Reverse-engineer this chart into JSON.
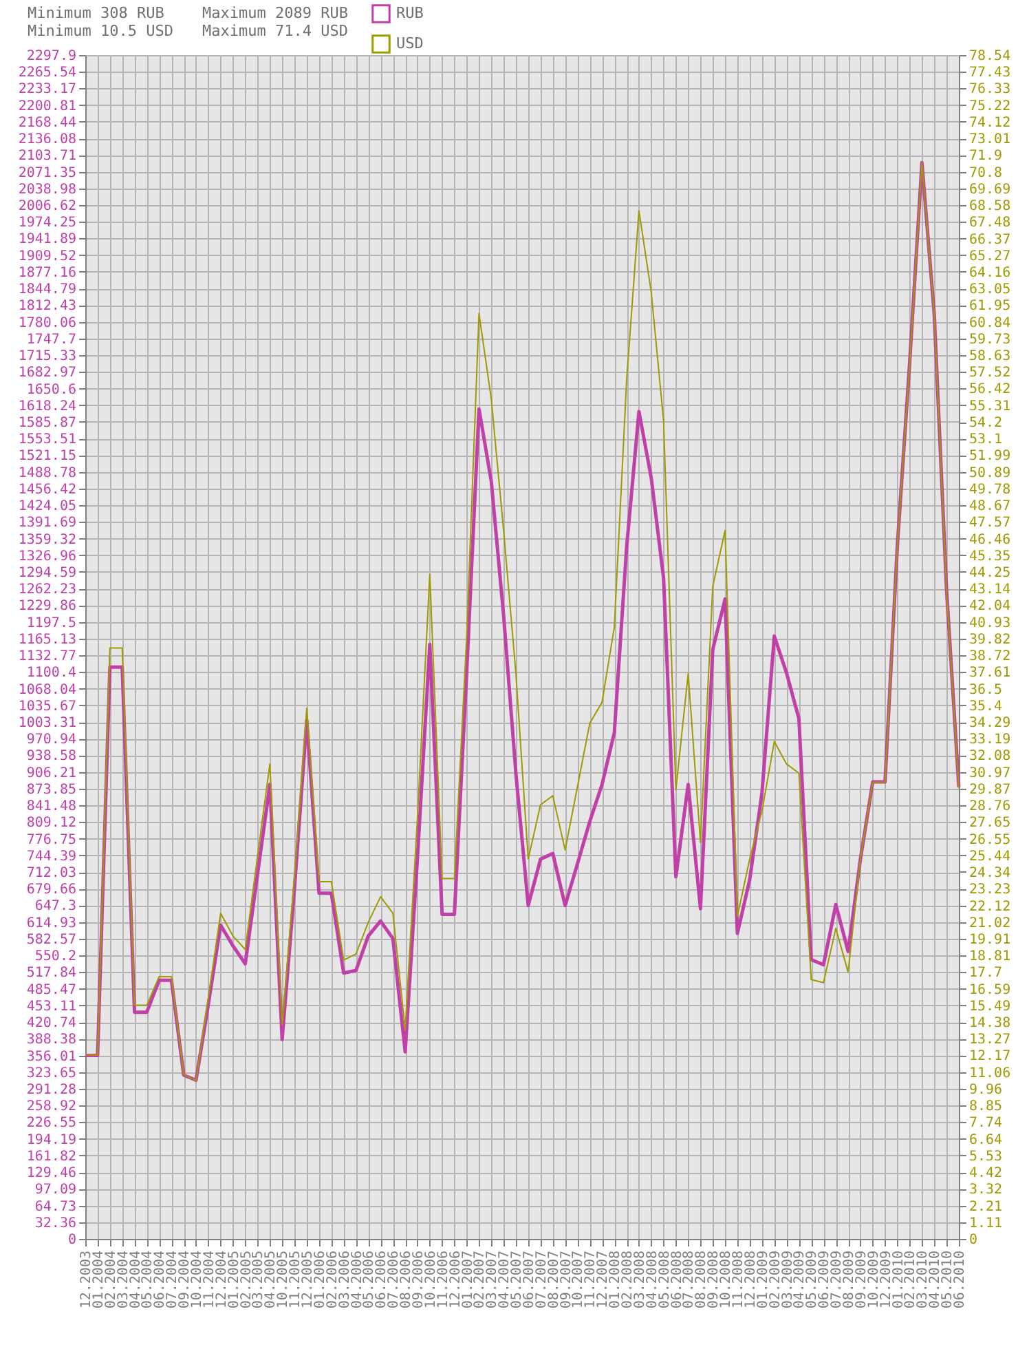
{
  "chart_data": {
    "type": "line",
    "annotations": [
      "Minimum 308 RUB",
      "Minimum 10.5 USD",
      "Maximum 2089 RUB",
      "Maximum 71.4 USD"
    ],
    "categories": [
      "12.2003",
      "01.2004",
      "02.2004",
      "03.2004",
      "04.2004",
      "05.2004",
      "06.2004",
      "07.2004",
      "09.2004",
      "10.2004",
      "11.2004",
      "12.2004",
      "01.2005",
      "02.2005",
      "03.2005",
      "04.2005",
      "10.2005",
      "11.2005",
      "12.2005",
      "01.2006",
      "02.2006",
      "03.2006",
      "04.2006",
      "05.2006",
      "06.2006",
      "07.2006",
      "08.2006",
      "09.2006",
      "10.2006",
      "11.2006",
      "12.2006",
      "01.2007",
      "02.2007",
      "03.2007",
      "04.2007",
      "05.2007",
      "06.2007",
      "07.2007",
      "08.2007",
      "09.2007",
      "10.2007",
      "11.2007",
      "12.2007",
      "01.2008",
      "02.2008",
      "03.2008",
      "04.2008",
      "05.2008",
      "06.2008",
      "07.2008",
      "08.2008",
      "09.2008",
      "10.2008",
      "11.2008",
      "12.2008",
      "01.2009",
      "02.2009",
      "03.2009",
      "04.2009",
      "05.2009",
      "06.2009",
      "07.2009",
      "08.2009",
      "09.2009",
      "10.2009",
      "12.2009",
      "01.2010",
      "02.2010",
      "03.2010",
      "04.2010",
      "05.2010",
      "06.2010"
    ],
    "series": [
      {
        "name": "RUB",
        "color": "#c040a8",
        "values": [
          356,
          356,
          1110,
          1110,
          440,
          440,
          502,
          502,
          318,
          308,
          455,
          609,
          569,
          534,
          708,
          882,
          387,
          680,
          1007,
          671,
          671,
          516,
          521,
          588,
          617,
          583,
          363,
          740,
          1154,
          630,
          630,
          1100,
          1611,
          1470,
          1210,
          903,
          647,
          737,
          748,
          647,
          728,
          810,
          882,
          983,
          1343,
          1606,
          1477,
          1283,
          703,
          882,
          641,
          1144,
          1242,
          593,
          697,
          866,
          1170,
          1098,
          1010,
          542,
          532,
          649,
          558,
          737,
          887,
          887,
          1345,
          1700,
          2089,
          1795,
          1260,
          877
        ]
      },
      {
        "name": "USD",
        "color": "#a09a00",
        "axis": "y2",
        "values": [
          12.2,
          12.2,
          39.2,
          39.2,
          15.5,
          15.5,
          17.4,
          17.4,
          10.9,
          10.5,
          16,
          21.6,
          20.1,
          19.2,
          25.4,
          31.5,
          14.2,
          24,
          35.2,
          23.7,
          23.7,
          18.5,
          18.9,
          21,
          22.7,
          21.6,
          13.9,
          28,
          44.1,
          23.9,
          23.9,
          40,
          61.4,
          55.7,
          47,
          37.5,
          25.2,
          28.8,
          29.4,
          25.8,
          30,
          34.2,
          35.6,
          40.6,
          57,
          68.2,
          62.8,
          54.3,
          29.8,
          37.5,
          26.3,
          43.3,
          47,
          21.4,
          25.2,
          28.4,
          33,
          31.5,
          30.9,
          17.2,
          17,
          20.6,
          17.7,
          25.2,
          30.3,
          30.3,
          46,
          58,
          71.4,
          61.4,
          43,
          29.9
        ]
      }
    ],
    "ylim": [
      0,
      2297.9
    ],
    "yticks": [
      0,
      32.36,
      64.73,
      97.09,
      129.46,
      161.82,
      194.19,
      226.55,
      258.92,
      291.28,
      323.65,
      356.01,
      388.38,
      420.74,
      453.11,
      485.47,
      517.84,
      550.2,
      582.57,
      614.93,
      647.3,
      679.66,
      712.03,
      744.39,
      776.75,
      809.12,
      841.48,
      873.85,
      906.21,
      938.58,
      970.94,
      1003.31,
      1035.67,
      1068.04,
      1100.4,
      1132.77,
      1165.13,
      1197.5,
      1229.86,
      1262.23,
      1294.59,
      1326.96,
      1359.32,
      1391.69,
      1424.05,
      1456.42,
      1488.78,
      1521.15,
      1553.51,
      1585.87,
      1618.24,
      1650.6,
      1682.97,
      1715.33,
      1747.7,
      1780.06,
      1812.43,
      1844.79,
      1877.16,
      1909.52,
      1941.89,
      1974.25,
      2006.62,
      2038.98,
      2071.35,
      2103.71,
      2136.08,
      2168.44,
      2200.81,
      2233.17,
      2265.54,
      2297.9
    ],
    "y2lim": [
      0,
      78.54
    ],
    "y2ticks": [
      0,
      1.11,
      2.21,
      3.32,
      4.42,
      5.53,
      6.64,
      7.74,
      8.85,
      9.96,
      11.06,
      12.17,
      13.27,
      14.38,
      15.49,
      16.59,
      17.7,
      18.81,
      19.91,
      21.02,
      22.12,
      23.23,
      24.34,
      25.44,
      26.55,
      27.65,
      28.76,
      29.87,
      30.97,
      32.08,
      33.19,
      34.29,
      35.4,
      36.5,
      37.61,
      38.72,
      39.82,
      40.93,
      42.04,
      43.14,
      44.25,
      45.35,
      46.46,
      47.57,
      48.67,
      49.78,
      50.89,
      51.99,
      53.1,
      54.2,
      55.31,
      56.42,
      57.52,
      58.63,
      59.73,
      60.84,
      61.95,
      63.05,
      64.16,
      65.27,
      66.37,
      67.48,
      68.58,
      69.69,
      70.8,
      71.9,
      73.01,
      74.12,
      75.22,
      76.33,
      77.43,
      78.54
    ],
    "grid": true,
    "legend": "top"
  }
}
